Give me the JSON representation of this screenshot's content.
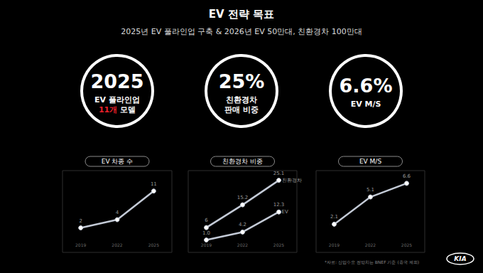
{
  "header": {
    "title": "EV 전략 목표",
    "subtitle": "2025년 EV 풀라인업 구축 & 2026년 EV 50만대, 친환경차 100만대"
  },
  "kpis": [
    {
      "value": "2025",
      "lines": [
        [
          {
            "text": "EV 풀라인업"
          }
        ],
        [
          {
            "text": "11개",
            "color": "#e8202a"
          },
          {
            "text": " 모델"
          }
        ]
      ]
    },
    {
      "value": "25%",
      "lines": [
        [
          {
            "text": "친환경차"
          }
        ],
        [
          {
            "text": "판매 비중"
          }
        ]
      ]
    },
    {
      "value": "6.6%",
      "lines": [
        [
          {
            "text": "EV M/S"
          }
        ]
      ]
    }
  ],
  "chart_data": [
    {
      "type": "line",
      "title": "EV 차종 수",
      "categories": [
        "2019",
        "2022",
        "2025"
      ],
      "values": [
        2,
        4,
        11
      ],
      "color": "#c3cad6",
      "ylim": [
        -4,
        16
      ],
      "data_labels": true,
      "tick_labels": "x",
      "grid": false,
      "marker": "circle"
    },
    {
      "type": "line",
      "title": "친환경차 비중",
      "categories": [
        "2019",
        "2022",
        "2025"
      ],
      "series": [
        {
          "name": "친환경차",
          "color": "#c3cad6",
          "values": [
            6,
            15.2,
            25.1
          ]
        },
        {
          "name": "EV",
          "color": "#c3cad6",
          "values": [
            1.0,
            4.2,
            12.3
          ],
          "value_labels": [
            "1.0",
            "4.2",
            "12.3"
          ]
        }
      ],
      "ylim": [
        -4,
        29
      ],
      "data_labels": true,
      "tick_labels": "x",
      "grid": false,
      "marker": "circle"
    },
    {
      "type": "line",
      "title": "EV M/S",
      "categories": [
        "2019",
        "2022",
        "2025"
      ],
      "values": [
        2.1,
        5.1,
        6.6
      ],
      "color": "#c3cad6",
      "ylim": [
        -1,
        8
      ],
      "data_labels": true,
      "tick_labels": "x",
      "grid": false,
      "marker": "circle"
    }
  ],
  "footnote": "*자료: 산업수요 전망치는 BNEF 기준 (중국 제외)",
  "logo": "KIA"
}
